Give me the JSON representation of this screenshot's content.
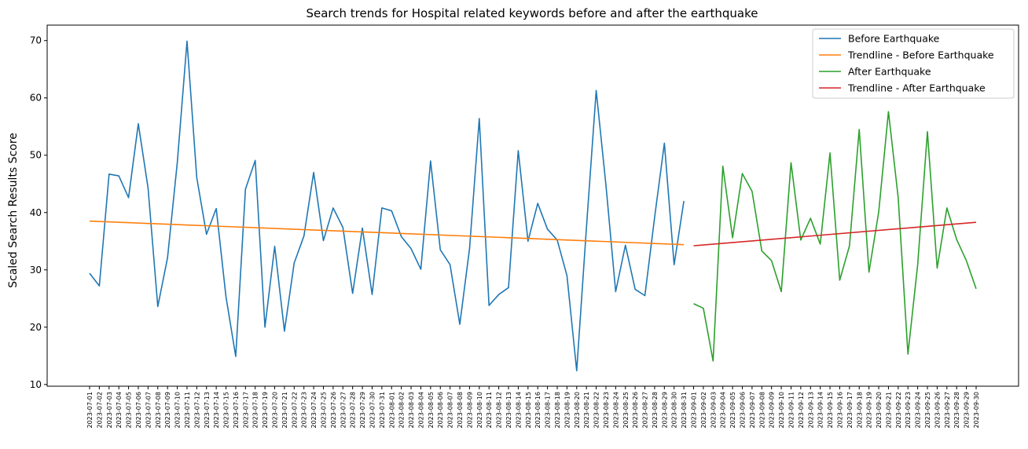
{
  "chart_data": {
    "type": "line",
    "title": "Search trends for Hospital related keywords before and after the earthquake",
    "xlabel": "",
    "ylabel": "Scaled Search Results Score",
    "ylim": [
      9.7,
      72.7
    ],
    "yticks": [
      10,
      20,
      30,
      40,
      50,
      60,
      70
    ],
    "grid": false,
    "legend_position": "top-right",
    "x": [
      "2023-07-01",
      "2023-07-02",
      "2023-07-03",
      "2023-07-04",
      "2023-07-05",
      "2023-07-06",
      "2023-07-07",
      "2023-07-08",
      "2023-07-09",
      "2023-07-10",
      "2023-07-11",
      "2023-07-12",
      "2023-07-13",
      "2023-07-14",
      "2023-07-15",
      "2023-07-16",
      "2023-07-17",
      "2023-07-18",
      "2023-07-19",
      "2023-07-20",
      "2023-07-21",
      "2023-07-22",
      "2023-07-23",
      "2023-07-24",
      "2023-07-25",
      "2023-07-26",
      "2023-07-27",
      "2023-07-28",
      "2023-07-29",
      "2023-07-30",
      "2023-07-31",
      "2023-08-01",
      "2023-08-02",
      "2023-08-03",
      "2023-08-04",
      "2023-08-05",
      "2023-08-06",
      "2023-08-07",
      "2023-08-08",
      "2023-08-09",
      "2023-08-10",
      "2023-08-11",
      "2023-08-12",
      "2023-08-13",
      "2023-08-14",
      "2023-08-15",
      "2023-08-16",
      "2023-08-17",
      "2023-08-18",
      "2023-08-19",
      "2023-08-20",
      "2023-08-21",
      "2023-08-22",
      "2023-08-23",
      "2023-08-24",
      "2023-08-25",
      "2023-08-26",
      "2023-08-27",
      "2023-08-28",
      "2023-08-29",
      "2023-08-30",
      "2023-08-31",
      "2023-09-01",
      "2023-09-02",
      "2023-09-03",
      "2023-09-04",
      "2023-09-05",
      "2023-09-06",
      "2023-09-07",
      "2023-09-08",
      "2023-09-09",
      "2023-09-10",
      "2023-09-11",
      "2023-09-12",
      "2023-09-13",
      "2023-09-14",
      "2023-09-15",
      "2023-09-16",
      "2023-09-17",
      "2023-09-18",
      "2023-09-19",
      "2023-09-20",
      "2023-09-21",
      "2023-09-22",
      "2023-09-23",
      "2023-09-24",
      "2023-09-25",
      "2023-09-26",
      "2023-09-27",
      "2023-09-28",
      "2023-09-29",
      "2023-09-30"
    ],
    "series": [
      {
        "name": "Before Earthquake",
        "color": "#1f77b4",
        "x": [
          "2023-07-01",
          "2023-07-02",
          "2023-07-03",
          "2023-07-04",
          "2023-07-05",
          "2023-07-06",
          "2023-07-07",
          "2023-07-08",
          "2023-07-09",
          "2023-07-10",
          "2023-07-11",
          "2023-07-12",
          "2023-07-13",
          "2023-07-14",
          "2023-07-15",
          "2023-07-16",
          "2023-07-17",
          "2023-07-18",
          "2023-07-19",
          "2023-07-20",
          "2023-07-21",
          "2023-07-22",
          "2023-07-23",
          "2023-07-24",
          "2023-07-25",
          "2023-07-26",
          "2023-07-27",
          "2023-07-28",
          "2023-07-29",
          "2023-07-30",
          "2023-07-31",
          "2023-08-01",
          "2023-08-02",
          "2023-08-03",
          "2023-08-04",
          "2023-08-05",
          "2023-08-06",
          "2023-08-07",
          "2023-08-08",
          "2023-08-09",
          "2023-08-10",
          "2023-08-11",
          "2023-08-12",
          "2023-08-13",
          "2023-08-14",
          "2023-08-15",
          "2023-08-16",
          "2023-08-17",
          "2023-08-18",
          "2023-08-19",
          "2023-08-20",
          "2023-08-21",
          "2023-08-22",
          "2023-08-23",
          "2023-08-24",
          "2023-08-25",
          "2023-08-26",
          "2023-08-27",
          "2023-08-28",
          "2023-08-29",
          "2023-08-30",
          "2023-08-31"
        ],
        "values": [
          29.4,
          27.2,
          46.7,
          46.4,
          42.6,
          55.5,
          44.3,
          23.6,
          32.1,
          48.7,
          69.9,
          46.1,
          36.2,
          40.7,
          25.3,
          14.9,
          44.1,
          49.1,
          20.0,
          34.1,
          19.3,
          31.2,
          35.9,
          47.0,
          35.1,
          40.8,
          37.4,
          25.9,
          37.3,
          25.7,
          40.8,
          40.3,
          35.8,
          33.7,
          30.1,
          49.0,
          33.5,
          30.9,
          20.5,
          33.7,
          56.4,
          23.8,
          25.7,
          26.9,
          50.8,
          35.0,
          41.6,
          37.1,
          35.2,
          29.0,
          12.4,
          37.4,
          61.3,
          44.8,
          26.2,
          34.3,
          26.6,
          25.5,
          39.2,
          52.1,
          30.9,
          42.0
        ]
      },
      {
        "name": "Trendline - Before Earthquake",
        "color": "#ff7f0e",
        "x": [
          "2023-07-01",
          "2023-08-31"
        ],
        "values": [
          38.5,
          34.4
        ]
      },
      {
        "name": "After Earthquake",
        "color": "#2ca02c",
        "x": [
          "2023-09-01",
          "2023-09-02",
          "2023-09-03",
          "2023-09-04",
          "2023-09-05",
          "2023-09-06",
          "2023-09-07",
          "2023-09-08",
          "2023-09-09",
          "2023-09-10",
          "2023-09-11",
          "2023-09-12",
          "2023-09-13",
          "2023-09-14",
          "2023-09-15",
          "2023-09-16",
          "2023-09-17",
          "2023-09-18",
          "2023-09-19",
          "2023-09-20",
          "2023-09-21",
          "2023-09-22",
          "2023-09-23",
          "2023-09-24",
          "2023-09-25",
          "2023-09-26",
          "2023-09-27",
          "2023-09-28",
          "2023-09-29",
          "2023-09-30"
        ],
        "values": [
          24.1,
          23.3,
          14.1,
          48.1,
          35.6,
          46.8,
          43.7,
          33.3,
          31.6,
          26.2,
          48.7,
          35.2,
          39.0,
          34.5,
          50.4,
          28.2,
          34.2,
          54.5,
          29.6,
          40.1,
          57.6,
          42.6,
          15.3,
          30.9,
          54.1,
          30.3,
          40.8,
          35.3,
          31.6,
          26.7
        ]
      },
      {
        "name": "Trendline - After Earthquake",
        "color": "#d62728",
        "x": [
          "2023-09-01",
          "2023-09-30"
        ],
        "values": [
          34.2,
          38.3
        ]
      }
    ]
  }
}
